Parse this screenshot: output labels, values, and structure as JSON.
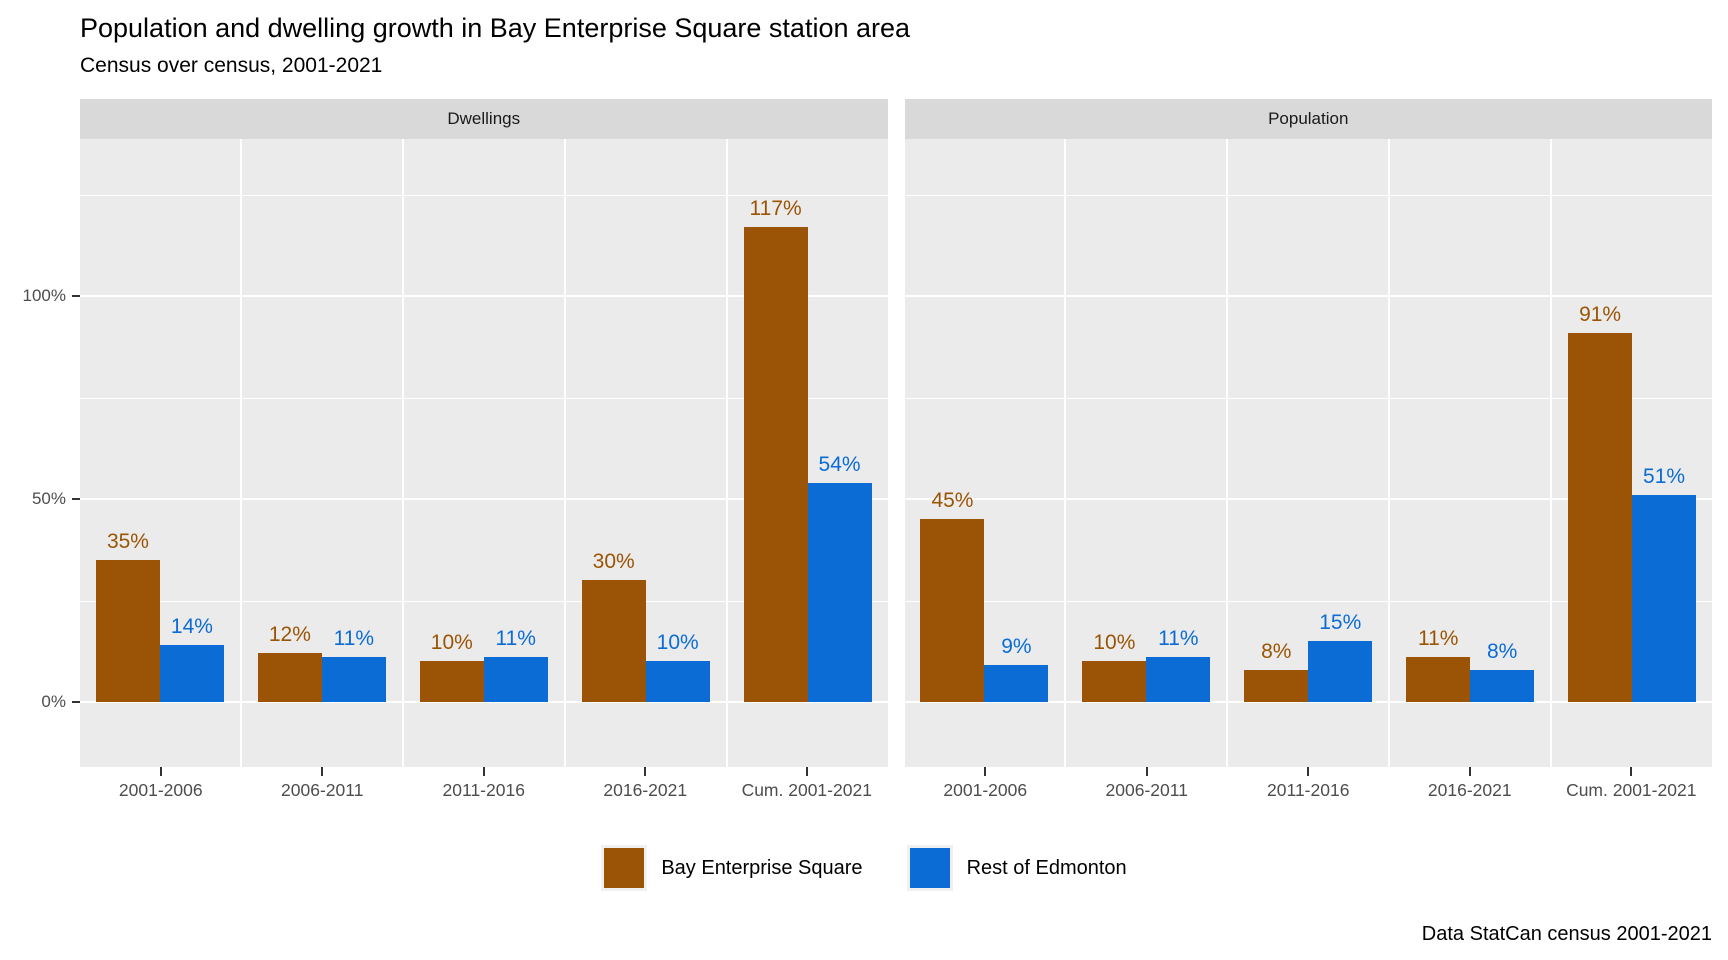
{
  "header": {
    "title": "Population and dwelling growth in Bay Enterprise Square station area",
    "subtitle": "Census over census, 2001-2021"
  },
  "caption": "Data StatCan census 2001-2021",
  "legend": {
    "items": [
      {
        "label": "Bay Enterprise Square",
        "color": "#9b5405"
      },
      {
        "label": "Rest of Edmonton",
        "color": "#0b6cd6"
      }
    ]
  },
  "chart_data": {
    "type": "bar",
    "title": "Population and dwelling growth in Bay Enterprise Square station area",
    "subtitle": "Census over census, 2001-2021",
    "categories": [
      "2001-2006",
      "2006-2011",
      "2011-2016",
      "2016-2021",
      "Cum. 2001-2021"
    ],
    "y_axis": {
      "unit": "%",
      "ticks": [
        {
          "label": "0%",
          "value": 0
        },
        {
          "label": "50%",
          "value": 50
        },
        {
          "label": "100%",
          "value": 100
        }
      ],
      "minor_ticks": [
        25,
        75,
        125
      ],
      "range": [
        -16,
        139
      ],
      "grid": "on"
    },
    "legend_position": "bottom",
    "facets": [
      {
        "label": "Dwellings",
        "series": [
          {
            "name": "Bay Enterprise Square",
            "color": "#9b5405",
            "values": [
              35,
              12,
              10,
              30,
              117
            ]
          },
          {
            "name": "Rest of Edmonton",
            "color": "#0b6cd6",
            "values": [
              14,
              11,
              11,
              10,
              54
            ]
          }
        ]
      },
      {
        "label": "Population",
        "series": [
          {
            "name": "Bay Enterprise Square",
            "color": "#9b5405",
            "values": [
              45,
              10,
              8,
              11,
              91
            ]
          },
          {
            "name": "Rest of Edmonton",
            "color": "#0b6cd6",
            "values": [
              9,
              11,
              15,
              8,
              51
            ]
          }
        ]
      }
    ],
    "colors": {
      "panel_bg": "#ebebeb",
      "strip_bg": "#d9d9d9",
      "grid": "#ffffff",
      "axis_text": "#4d4d4d"
    }
  }
}
